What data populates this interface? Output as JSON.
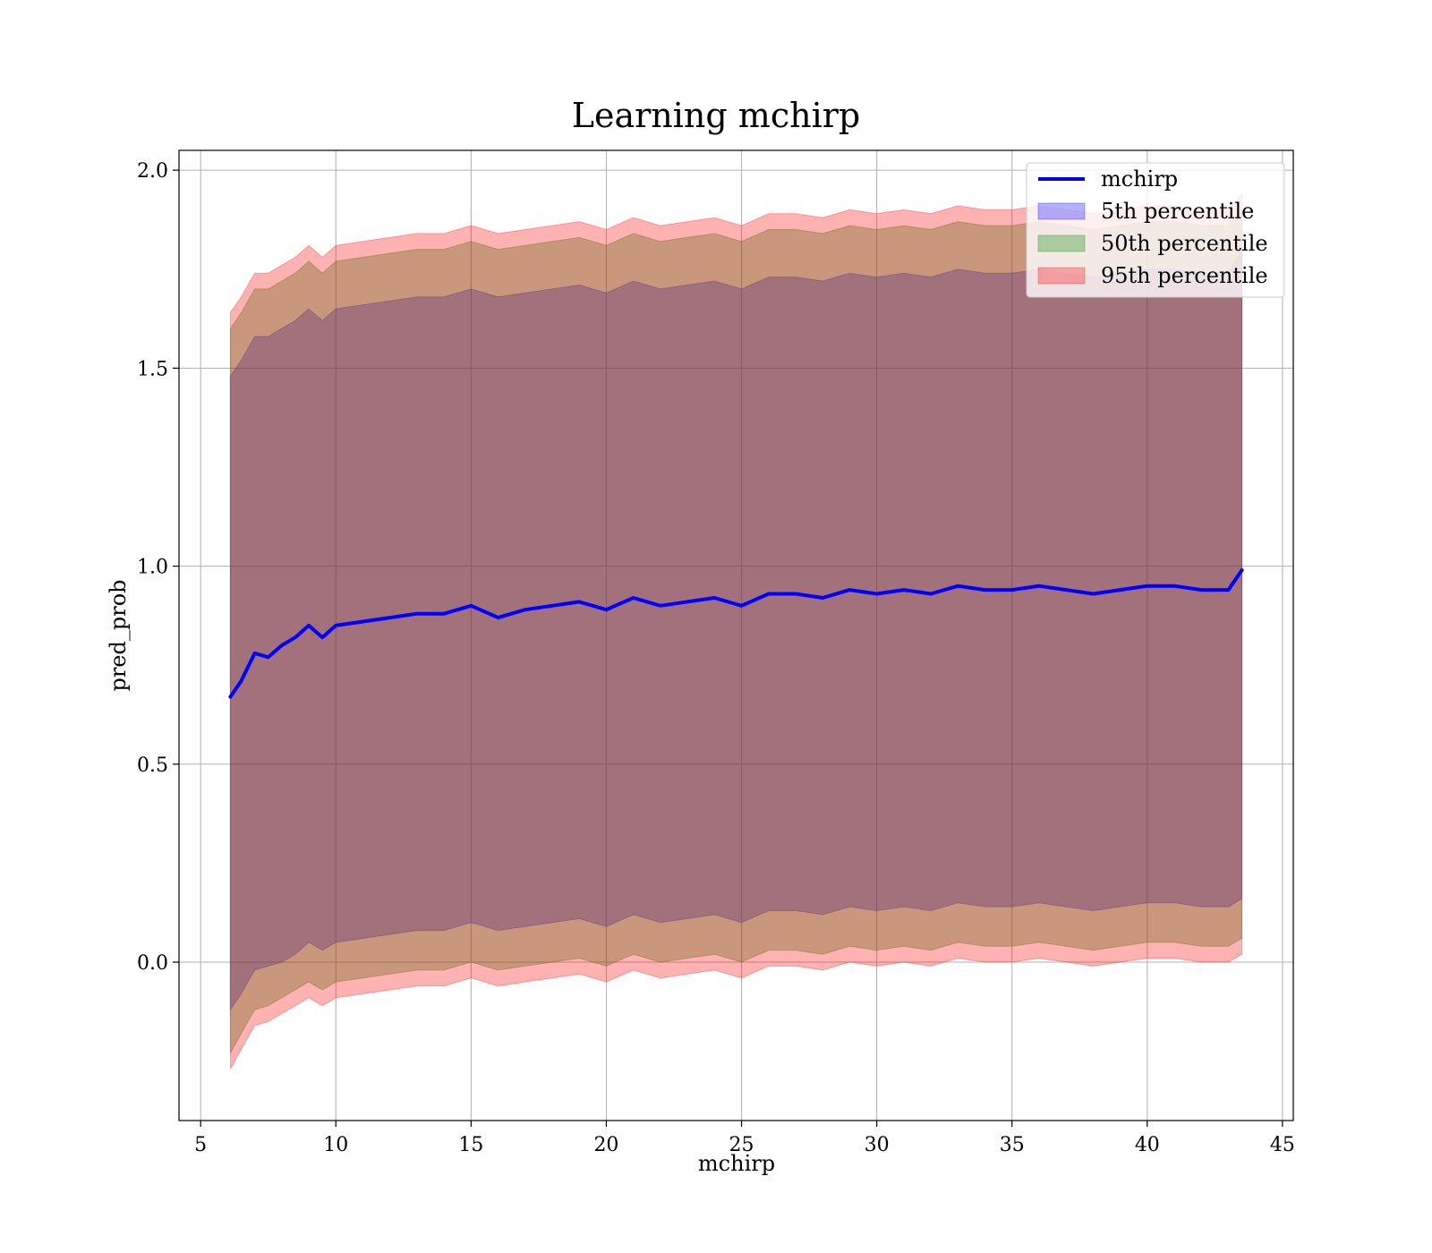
{
  "chart_data": {
    "type": "area",
    "title": "Learning mchirp",
    "xlabel": "mchirp",
    "ylabel": "pred_prob",
    "xlim": [
      4.2,
      45.4
    ],
    "ylim": [
      -0.4,
      2.05
    ],
    "xticks": [
      5,
      10,
      15,
      20,
      25,
      30,
      35,
      40,
      45
    ],
    "yticks": [
      0.0,
      0.5,
      1.0,
      1.5,
      2.0
    ],
    "xtick_labels": [
      "5",
      "10",
      "15",
      "20",
      "25",
      "30",
      "35",
      "40",
      "45"
    ],
    "ytick_labels": [
      "0.0",
      "0.5",
      "1.0",
      "1.5",
      "2.0"
    ],
    "grid": true,
    "legend_position": "top-right",
    "legend": {
      "line_label": "mchirp",
      "band_labels": [
        "5th percentile",
        "50th percentile",
        "95th percentile"
      ]
    },
    "colors": {
      "line": "#0000ff",
      "band_5": "#0000ff",
      "band_50": "#008000",
      "band_95": "#ff0000"
    },
    "x": [
      6.1,
      6.5,
      7,
      7.5,
      8,
      8.5,
      9,
      9.5,
      10,
      11,
      12,
      13,
      14,
      15,
      16,
      17,
      18,
      19,
      20,
      21,
      22,
      23,
      24,
      25,
      26,
      27,
      28,
      29,
      30,
      31,
      32,
      33,
      34,
      35,
      36,
      37,
      38,
      39,
      40,
      41,
      42,
      43,
      43.5
    ],
    "series": [
      {
        "name": "mchirp",
        "values": [
          0.67,
          0.71,
          0.78,
          0.77,
          0.8,
          0.82,
          0.85,
          0.82,
          0.85,
          0.86,
          0.87,
          0.88,
          0.88,
          0.9,
          0.87,
          0.89,
          0.9,
          0.91,
          0.89,
          0.92,
          0.9,
          0.91,
          0.92,
          0.9,
          0.93,
          0.93,
          0.92,
          0.94,
          0.93,
          0.94,
          0.93,
          0.95,
          0.94,
          0.94,
          0.95,
          0.94,
          0.93,
          0.94,
          0.95,
          0.95,
          0.94,
          0.94,
          0.99
        ]
      },
      {
        "name": "5th percentile",
        "lower": [
          -0.12,
          -0.08,
          -0.02,
          -0.01,
          0.0,
          0.02,
          0.05,
          0.03,
          0.05,
          0.06,
          0.07,
          0.08,
          0.08,
          0.1,
          0.08,
          0.09,
          0.1,
          0.11,
          0.09,
          0.12,
          0.1,
          0.11,
          0.12,
          0.1,
          0.13,
          0.13,
          0.12,
          0.14,
          0.13,
          0.14,
          0.13,
          0.15,
          0.14,
          0.14,
          0.15,
          0.14,
          0.13,
          0.14,
          0.15,
          0.15,
          0.14,
          0.14,
          0.16
        ],
        "upper": [
          1.48,
          1.52,
          1.58,
          1.58,
          1.6,
          1.62,
          1.65,
          1.62,
          1.65,
          1.66,
          1.67,
          1.68,
          1.68,
          1.7,
          1.68,
          1.69,
          1.7,
          1.71,
          1.69,
          1.72,
          1.7,
          1.71,
          1.72,
          1.7,
          1.73,
          1.73,
          1.72,
          1.74,
          1.73,
          1.74,
          1.73,
          1.75,
          1.74,
          1.74,
          1.75,
          1.74,
          1.73,
          1.74,
          1.75,
          1.75,
          1.74,
          1.74,
          1.8
        ]
      },
      {
        "name": "50th percentile",
        "lower": [
          -0.23,
          -0.18,
          -0.12,
          -0.11,
          -0.09,
          -0.07,
          -0.05,
          -0.07,
          -0.05,
          -0.04,
          -0.03,
          -0.02,
          -0.02,
          0.0,
          -0.02,
          -0.01,
          0.0,
          0.01,
          -0.01,
          0.02,
          0.0,
          0.01,
          0.02,
          0.0,
          0.03,
          0.03,
          0.02,
          0.04,
          0.03,
          0.04,
          0.03,
          0.05,
          0.04,
          0.04,
          0.05,
          0.04,
          0.03,
          0.04,
          0.05,
          0.05,
          0.04,
          0.04,
          0.06
        ],
        "upper": [
          1.6,
          1.64,
          1.7,
          1.7,
          1.72,
          1.74,
          1.77,
          1.74,
          1.77,
          1.78,
          1.79,
          1.8,
          1.8,
          1.82,
          1.8,
          1.81,
          1.82,
          1.83,
          1.81,
          1.84,
          1.82,
          1.83,
          1.84,
          1.82,
          1.85,
          1.85,
          1.84,
          1.86,
          1.85,
          1.86,
          1.85,
          1.87,
          1.86,
          1.86,
          1.87,
          1.86,
          1.85,
          1.86,
          1.87,
          1.87,
          1.86,
          1.86,
          1.9
        ]
      },
      {
        "name": "95th percentile",
        "lower": [
          -0.27,
          -0.22,
          -0.16,
          -0.15,
          -0.13,
          -0.11,
          -0.09,
          -0.11,
          -0.09,
          -0.08,
          -0.07,
          -0.06,
          -0.06,
          -0.04,
          -0.06,
          -0.05,
          -0.04,
          -0.03,
          -0.05,
          -0.02,
          -0.04,
          -0.03,
          -0.02,
          -0.04,
          -0.01,
          -0.01,
          -0.02,
          0.0,
          -0.01,
          0.0,
          -0.01,
          0.01,
          0.0,
          0.0,
          0.01,
          0.0,
          -0.01,
          0.0,
          0.01,
          0.01,
          0.0,
          0.0,
          0.02
        ],
        "upper": [
          1.64,
          1.68,
          1.74,
          1.74,
          1.76,
          1.78,
          1.81,
          1.78,
          1.81,
          1.82,
          1.83,
          1.84,
          1.84,
          1.86,
          1.84,
          1.85,
          1.86,
          1.87,
          1.85,
          1.88,
          1.86,
          1.87,
          1.88,
          1.86,
          1.89,
          1.89,
          1.88,
          1.9,
          1.89,
          1.9,
          1.89,
          1.91,
          1.9,
          1.9,
          1.91,
          1.9,
          1.89,
          1.9,
          1.91,
          1.91,
          1.9,
          1.9,
          1.94
        ]
      }
    ]
  }
}
